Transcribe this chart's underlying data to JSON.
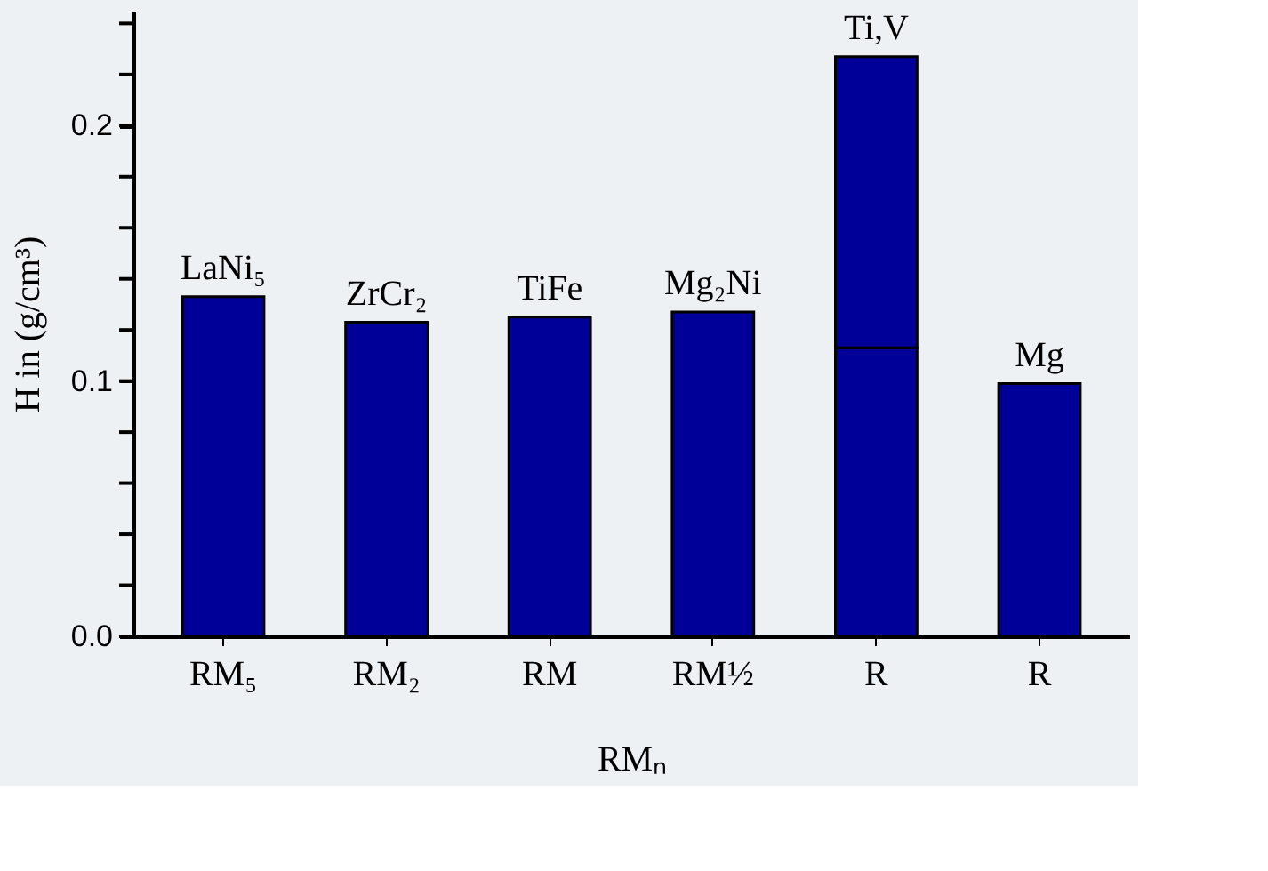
{
  "chart_data": {
    "type": "bar",
    "stacked": true,
    "categories": [
      "RM₅",
      "RM₂",
      "RM",
      "RM½",
      "R",
      "R"
    ],
    "series": [
      {
        "color": "#000099",
        "values": [
          0.133,
          0.123,
          0.125,
          0.127,
          0.113,
          0.099
        ]
      },
      {
        "color": "#000099",
        "values": [
          null,
          null,
          null,
          null,
          0.114,
          null
        ]
      }
    ],
    "xlabel": "RMₙ",
    "ylabel": "H in (g/cm³)",
    "ylim": [
      0,
      0.245
    ],
    "yticks": [
      {
        "value": 0,
        "label": "0.0"
      },
      {
        "value": 0.02,
        "label": null
      },
      {
        "value": 0.04,
        "label": null
      },
      {
        "value": 0.06,
        "label": null
      },
      {
        "value": 0.08,
        "label": null
      },
      {
        "value": 0.1,
        "label": "0.1"
      },
      {
        "value": 0.12,
        "label": null
      },
      {
        "value": 0.14,
        "label": null
      },
      {
        "value": 0.16,
        "label": null
      },
      {
        "value": 0.18,
        "label": null
      },
      {
        "value": 0.2,
        "label": "0.2"
      },
      {
        "value": 0.22,
        "label": null
      },
      {
        "value": 0.24,
        "label": null
      }
    ],
    "annotations": [
      {
        "text": "LaNi₅",
        "x": "RM₅",
        "y": 0.133
      },
      {
        "text": "ZrCr₂",
        "x": "RM₂",
        "y": 0.123
      },
      {
        "text": "TiFe",
        "x": "RM",
        "y": 0.125
      },
      {
        "text": "Mg₂Ni",
        "x": "RM½",
        "y": 0.127
      },
      {
        "text": "Ti,V",
        "x": "R",
        "y": 0.227
      },
      "Mg"
    ],
    "grid": false
  }
}
